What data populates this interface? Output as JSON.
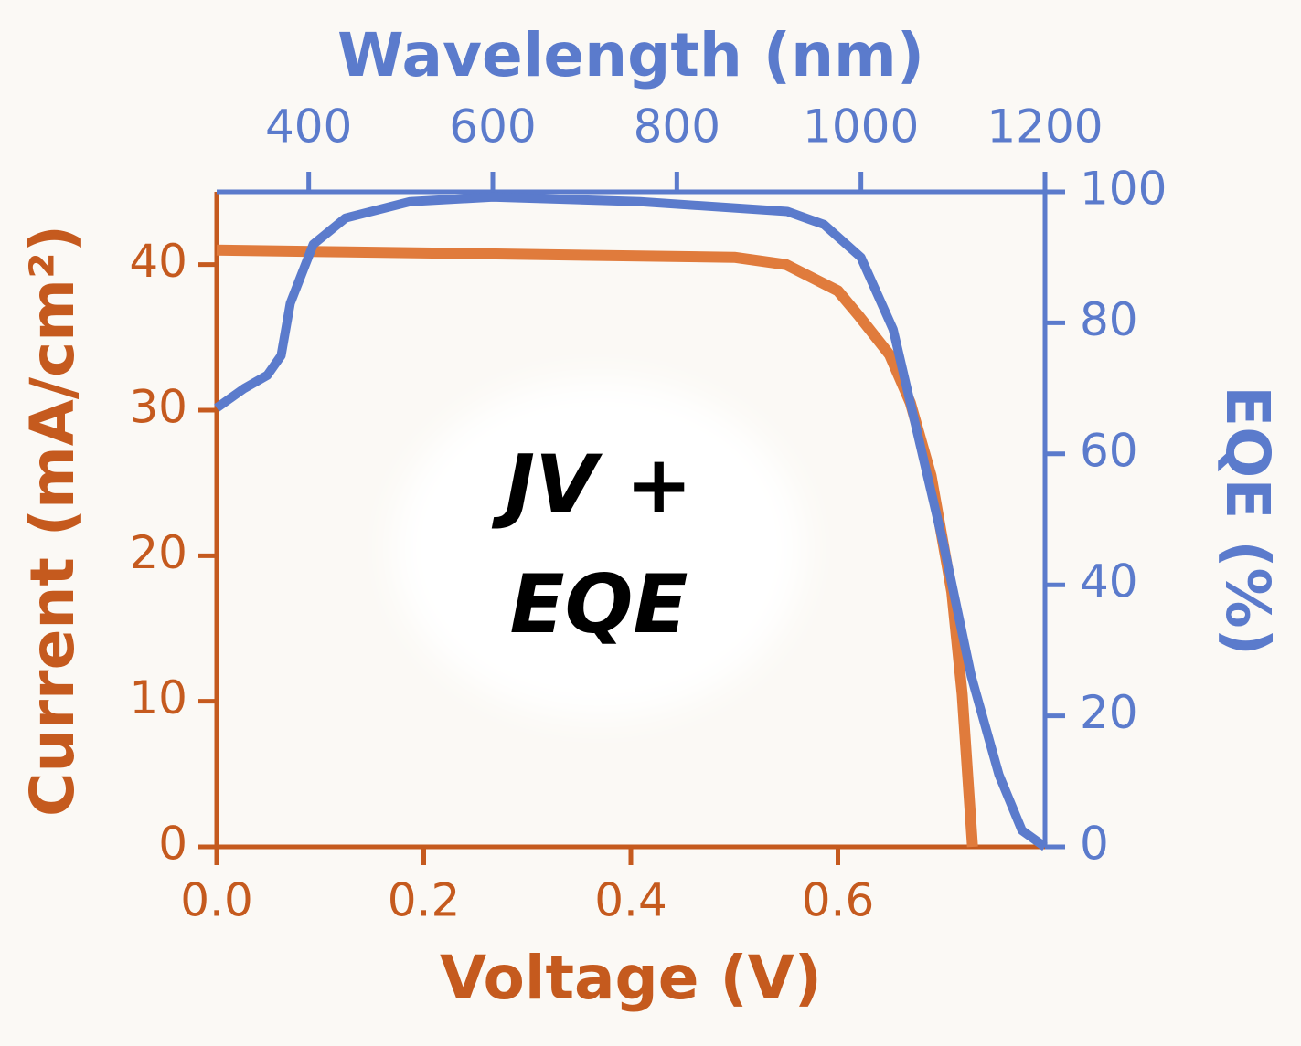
{
  "chart_data": {
    "type": "line",
    "xlabel": "Voltage  (V)",
    "ylabel": "Current  (mA/cm²)",
    "x2label": "Wavelength  (nm)",
    "y2label": "EQE  (%)",
    "annotation": [
      "JV +",
      "EQE"
    ],
    "xlim": [
      0,
      0.8
    ],
    "xticks": [
      {
        "value": 0,
        "label": "0.0"
      },
      0.2,
      0.4,
      0.6
    ],
    "ylim": [
      0,
      45
    ],
    "yticks": [
      0,
      10,
      20,
      30,
      40
    ],
    "x2lim": [
      300,
      1200
    ],
    "x2ticks": [
      400,
      600,
      800,
      1000,
      1200
    ],
    "y2lim": [
      0,
      100
    ],
    "y2ticks": [
      0,
      20,
      40,
      60,
      80,
      100
    ],
    "series": [
      {
        "color": "#e07b3c",
        "axis": "y",
        "x": [
          0,
          0.1,
          0.2,
          0.3,
          0.4,
          0.5,
          0.55,
          0.6,
          0.62,
          0.65,
          0.67,
          0.69,
          0.71,
          0.72,
          0.73
        ],
        "values": [
          41,
          40.9,
          40.8,
          40.7,
          40.6,
          40.5,
          40,
          38.2,
          36.5,
          33.8,
          30.5,
          25.5,
          17.5,
          10.5,
          0
        ]
      },
      {
        "color": "#5b7bcc",
        "axis": "y2",
        "x": [
          300,
          330,
          355,
          370,
          380,
          405,
          440,
          510,
          600,
          760,
          920,
          960,
          1000,
          1035,
          1060,
          1090,
          1120,
          1150,
          1175,
          1200
        ],
        "values": [
          67,
          70,
          72,
          75,
          83,
          92,
          96,
          98.5,
          99.2,
          98.5,
          97,
          95,
          90,
          79,
          64,
          46,
          26,
          11,
          2.5,
          0
        ]
      }
    ]
  }
}
